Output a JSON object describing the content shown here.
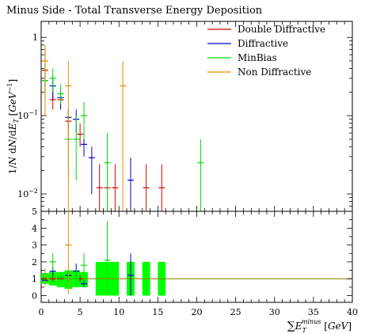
{
  "title": "Minus Side - Total Transverse Energy Deposition",
  "chart_data": [
    {
      "type": "line",
      "panel": "main",
      "ylabel": "1/N dN/dE_T [GeV^-1]",
      "yscale": "log",
      "ylim": [
        0.006,
        1.6
      ],
      "xlim": [
        0,
        40
      ],
      "yticks": [
        {
          "v": 0.01,
          "base": "10",
          "exp": "−2"
        },
        {
          "v": 0.1,
          "base": "10",
          "exp": "−1"
        },
        {
          "v": 1,
          "base": "1",
          "exp": ""
        }
      ],
      "legend_position": "top-right",
      "series": [
        {
          "name": "Double Diffractive",
          "color": "#d10000",
          "points": [
            [
              0.5,
              0.38,
              0.2,
              0.7
            ],
            [
              1.5,
              0.16,
              0.12,
              0.22
            ],
            [
              2.5,
              0.16,
              0.12,
              0.22
            ],
            [
              3.5,
              0.085,
              0.05,
              0.12
            ],
            [
              5.0,
              0.058,
              0.04,
              0.08
            ],
            [
              7.5,
              0.012,
              0.006,
              0.024
            ],
            [
              8.5,
              0.012,
              0.006,
              0.024
            ],
            [
              9.5,
              0.012,
              0.006,
              0.024
            ],
            [
              13.5,
              0.012,
              0.006,
              0.024
            ],
            [
              15.5,
              0.012,
              0.006,
              0.024
            ]
          ]
        },
        {
          "name": "Diffractive",
          "color": "#0000cc",
          "points": [
            [
              0.5,
              0.28,
              0.2,
              0.4
            ],
            [
              1.5,
              0.24,
              0.16,
              0.32
            ],
            [
              2.5,
              0.17,
              0.12,
              0.22
            ],
            [
              3.5,
              0.095,
              0.07,
              0.12
            ],
            [
              4.5,
              0.09,
              0.06,
              0.12
            ],
            [
              5.5,
              0.043,
              0.03,
              0.06
            ],
            [
              6.5,
              0.029,
              0.01,
              0.04
            ],
            [
              11.5,
              0.015,
              0.006,
              0.029
            ]
          ]
        },
        {
          "name": "MinBias",
          "color": "#00dd00",
          "points": [
            [
              0.5,
              0.28,
              0.16,
              0.45
            ],
            [
              1.5,
              0.3,
              0.2,
              0.4
            ],
            [
              2.5,
              0.19,
              0.14,
              0.25
            ],
            [
              3.5,
              0.05,
              0.018,
              0.11
            ],
            [
              4.5,
              0.05,
              0.015,
              0.1
            ],
            [
              5.5,
              0.1,
              0.05,
              0.15
            ],
            [
              8.5,
              0.025,
              0.006,
              0.06
            ],
            [
              20.5,
              0.025,
              0.006,
              0.05
            ]
          ]
        },
        {
          "name": "Non Diffractive",
          "color": "#e88e00",
          "points": [
            [
              0.5,
              0.5,
              0.1,
              0.8
            ],
            [
              3.5,
              0.24,
              0.006,
              0.5
            ],
            [
              10.5,
              0.24,
              0.006,
              0.5
            ]
          ]
        }
      ]
    },
    {
      "type": "line",
      "panel": "ratio",
      "xlabel": "ΣE_T^minus [GeV]",
      "xlim": [
        0,
        40
      ],
      "ylim": [
        -0.4,
        5
      ],
      "xticks": [
        0,
        5,
        10,
        15,
        20,
        25,
        30,
        35,
        40
      ],
      "yticks": [
        0,
        1,
        2,
        3,
        4,
        5
      ],
      "reference_line": 1,
      "band_color": "#00ff00",
      "bands": [
        [
          0,
          1,
          0.7,
          1.3
        ],
        [
          1,
          2,
          0.6,
          1.4
        ],
        [
          2,
          3,
          0.5,
          1.4
        ],
        [
          3,
          4,
          0.4,
          1.5
        ],
        [
          4,
          5,
          0.5,
          1.5
        ],
        [
          5,
          6,
          0.5,
          1.4
        ],
        [
          7,
          10,
          0,
          2
        ],
        [
          11,
          12,
          0,
          2
        ],
        [
          13,
          14,
          0,
          2
        ],
        [
          15,
          16,
          0,
          2
        ]
      ],
      "series": [
        {
          "name": "Double Diffractive",
          "color": "#d10000",
          "points": [
            [
              0.5,
              1,
              0.9,
              1.1
            ],
            [
              1.5,
              1,
              0.8,
              1.2
            ],
            [
              2.5,
              1,
              0.85,
              1.15
            ],
            [
              3.5,
              1,
              0.8,
              1.2
            ],
            [
              5.0,
              1,
              0.8,
              1.2
            ]
          ]
        },
        {
          "name": "Diffractive",
          "color": "#0000cc",
          "points": [
            [
              0.5,
              0.9,
              0.7,
              1.1
            ],
            [
              1.5,
              1.45,
              1.2,
              1.7
            ],
            [
              2.5,
              1.1,
              0.9,
              1.3
            ],
            [
              3.5,
              1.2,
              0.9,
              1.5
            ],
            [
              4.5,
              1.45,
              1.0,
              1.9
            ],
            [
              5.5,
              0.7,
              0.5,
              0.9
            ],
            [
              11.5,
              1.2,
              0,
              2.5
            ]
          ]
        },
        {
          "name": "MinBias",
          "color": "#00dd00",
          "points": [
            [
              0.5,
              1.3,
              1.0,
              1.6
            ],
            [
              1.5,
              2.0,
              1.5,
              2.5
            ],
            [
              2.5,
              1.1,
              0.8,
              1.4
            ],
            [
              3.5,
              1.0,
              0.6,
              1.4
            ],
            [
              4.5,
              1.0,
              0.5,
              1.5
            ],
            [
              5.5,
              1.8,
              1.2,
              2.5
            ],
            [
              8.5,
              2.1,
              0,
              4.4
            ]
          ]
        },
        {
          "name": "Non Diffractive",
          "color": "#e88e00",
          "points": [
            [
              0.5,
              1.0,
              0.6,
              1.4
            ],
            [
              3.5,
              3.0,
              0.1,
              5.0
            ]
          ]
        }
      ]
    }
  ]
}
